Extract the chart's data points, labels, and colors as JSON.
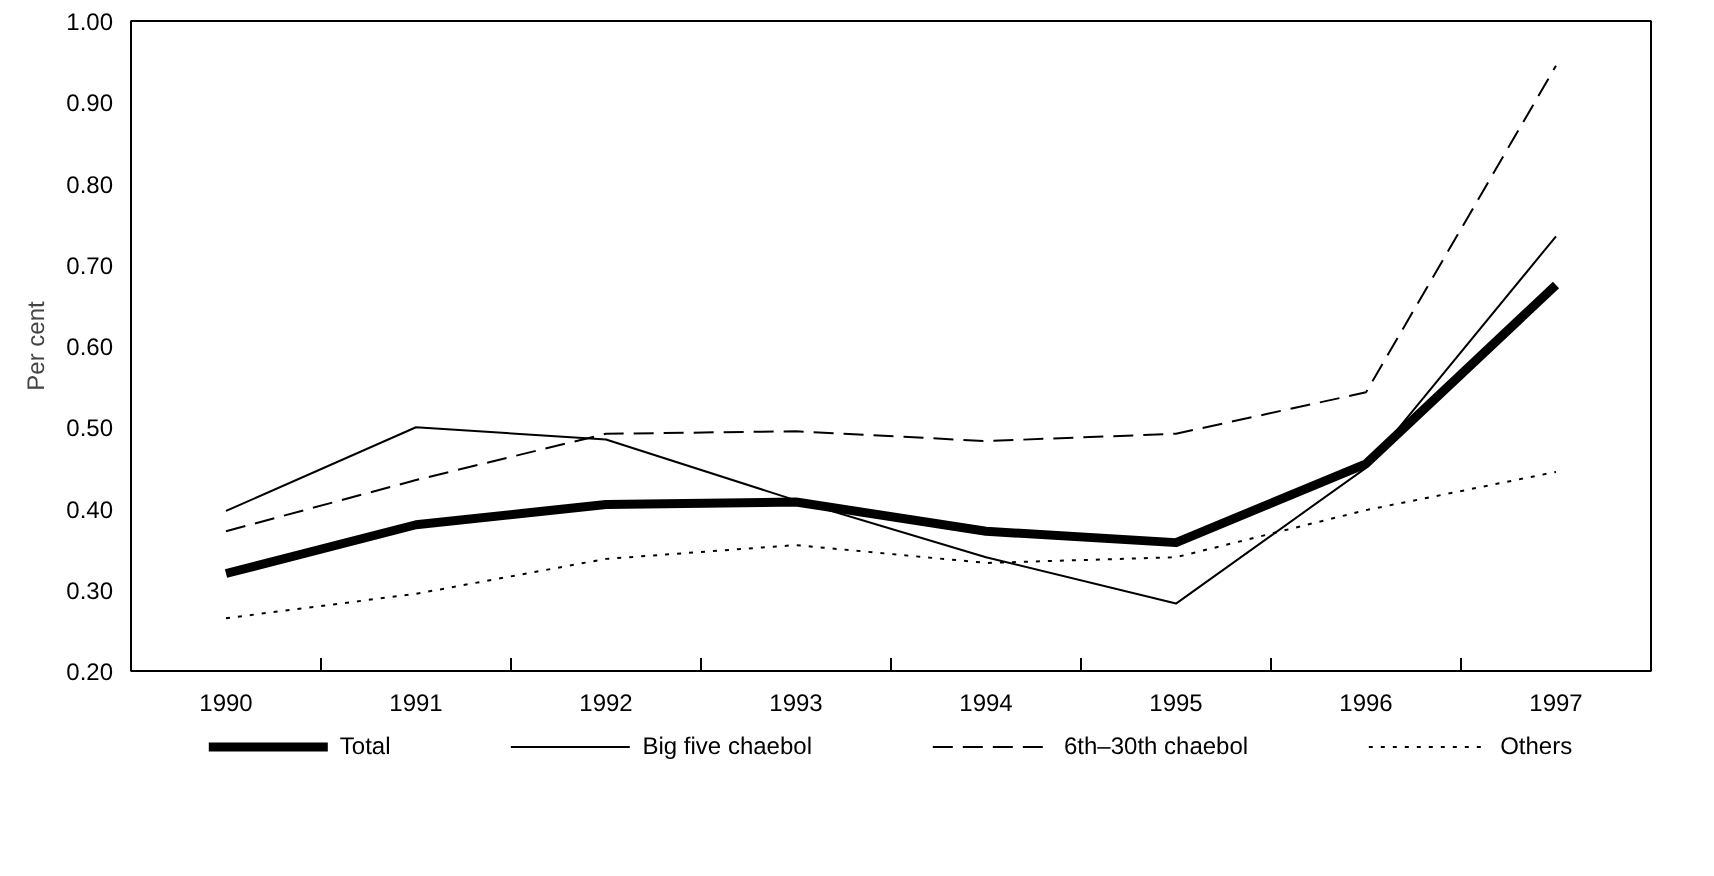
{
  "chart_data": {
    "type": "line",
    "ylabel": "Per cent",
    "categories": [
      "1990",
      "1991",
      "1992",
      "1993",
      "1994",
      "1995",
      "1996",
      "1997"
    ],
    "ylim": [
      0.2,
      1.0
    ],
    "yticks": [
      {
        "value": 0.2,
        "label": "0.20"
      },
      {
        "value": 0.3,
        "label": "0.30"
      },
      {
        "value": 0.4,
        "label": "0.40"
      },
      {
        "value": 0.5,
        "label": "0.50"
      },
      {
        "value": 0.6,
        "label": "0.60"
      },
      {
        "value": 0.7,
        "label": "0.70"
      },
      {
        "value": 0.8,
        "label": "0.80"
      },
      {
        "value": 0.9,
        "label": "0.90"
      },
      {
        "value": 1.0,
        "label": "1.00"
      }
    ],
    "grid": false,
    "legend": "bottom",
    "marker": "none",
    "series": [
      {
        "name": "Total",
        "color": "#000000",
        "line_style": "solid",
        "values": [
          0.32,
          0.38,
          0.405,
          0.408,
          0.372,
          0.358,
          0.455,
          0.675
        ]
      },
      {
        "name": "Big five chaebol",
        "color": "#000000",
        "line_style": "solid",
        "values": [
          0.397,
          0.5,
          0.485,
          0.41,
          0.34,
          0.283,
          0.45,
          0.735
        ]
      },
      {
        "name": "6th–30th chaebol",
        "color": "#000000",
        "line_style": "dashed",
        "values": [
          0.372,
          0.435,
          0.492,
          0.495,
          0.483,
          0.492,
          0.543,
          0.945
        ]
      },
      {
        "name": "Others",
        "color": "#000000",
        "line_style": "dotted",
        "values": [
          0.265,
          0.295,
          0.338,
          0.355,
          0.333,
          0.34,
          0.398,
          0.445
        ]
      }
    ]
  }
}
